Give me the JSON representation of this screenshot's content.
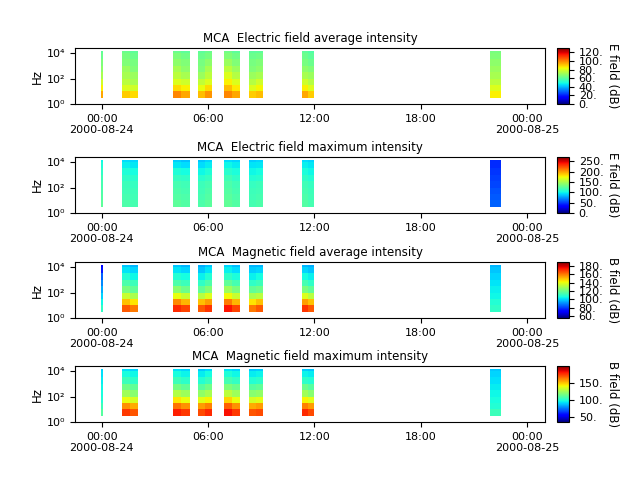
{
  "chart_data": [
    {
      "type": "heatmap",
      "title": "MCA  Electric field average intensity",
      "y_label": "Hz",
      "colorbar_label": "E field (dB)",
      "log": "y",
      "xlim": [
        -1.5,
        25
      ],
      "xticks": [
        {
          "value": 0,
          "label": "00:00\n2000-08-24"
        },
        {
          "value": 6,
          "label": "06:00"
        },
        {
          "value": 12,
          "label": "12:00"
        },
        {
          "value": 18,
          "label": "18:00"
        },
        {
          "value": 24,
          "label": "00:00\n2000-08-25"
        }
      ],
      "ylim": [
        1,
        25000
      ],
      "yticks": [
        {
          "value": 1,
          "label": "10⁰"
        },
        {
          "value": 100,
          "label": "10²"
        },
        {
          "value": 10000,
          "label": "10⁴"
        }
      ],
      "x_edges": [
        -0.05,
        0.1,
        1.15,
        1.6,
        2.05,
        4.0,
        4.5,
        5.0,
        5.45,
        5.85,
        6.25,
        6.9,
        7.35,
        7.8,
        8.3,
        8.7,
        9.1,
        11.3,
        11.65,
        12.0,
        21.9,
        22.5
      ],
      "y_edges": [
        3.2,
        10,
        32,
        100,
        316,
        1000,
        3162,
        10000,
        14000
      ],
      "cells": [
        [
          95,
          null,
          90,
          88,
          null,
          100,
          95,
          null,
          92,
          98,
          null,
          100,
          95,
          null,
          90,
          92,
          null,
          95,
          90,
          null,
          85
        ],
        [
          85,
          null,
          80,
          78,
          null,
          88,
          85,
          null,
          82,
          88,
          null,
          92,
          86,
          null,
          80,
          84,
          null,
          85,
          80,
          null,
          80
        ],
        [
          78,
          null,
          75,
          72,
          null,
          80,
          78,
          null,
          76,
          80,
          null,
          85,
          80,
          null,
          74,
          78,
          null,
          78,
          74,
          null,
          75
        ],
        [
          72,
          null,
          72,
          70,
          null,
          75,
          72,
          null,
          70,
          75,
          null,
          80,
          74,
          null,
          70,
          72,
          null,
          72,
          70,
          null,
          72
        ],
        [
          68,
          null,
          70,
          66,
          null,
          72,
          68,
          null,
          66,
          72,
          null,
          75,
          70,
          null,
          66,
          68,
          null,
          68,
          66,
          null,
          70
        ],
        [
          65,
          null,
          66,
          64,
          null,
          68,
          66,
          null,
          64,
          68,
          null,
          70,
          66,
          null,
          64,
          66,
          null,
          64,
          62,
          null,
          68
        ],
        [
          62,
          null,
          64,
          62,
          null,
          65,
          63,
          null,
          62,
          64,
          null,
          66,
          63,
          null,
          62,
          63,
          null,
          62,
          60,
          null,
          66
        ],
        [
          60,
          null,
          62,
          60,
          null,
          62,
          60,
          null,
          60,
          62,
          null,
          63,
          60,
          null,
          60,
          60,
          null,
          60,
          58,
          null,
          64
        ]
      ],
      "colorbar_range": [
        0,
        130
      ],
      "colorbar_ticks": [
        {
          "value": 0,
          "label": "0."
        },
        {
          "value": 20,
          "label": "20."
        },
        {
          "value": 40,
          "label": "40."
        },
        {
          "value": 60,
          "label": "60."
        },
        {
          "value": 80,
          "label": "80."
        },
        {
          "value": 100,
          "label": "100."
        },
        {
          "value": 120,
          "label": "120."
        }
      ]
    },
    {
      "type": "heatmap",
      "title": "MCA  Electric field maximum intensity",
      "y_label": "Hz",
      "colorbar_label": "E field (dB)",
      "log": "y",
      "xlim": [
        -1.5,
        25
      ],
      "xticks": [
        {
          "value": 0,
          "label": "00:00\n2000-08-24"
        },
        {
          "value": 6,
          "label": "06:00"
        },
        {
          "value": 12,
          "label": "12:00"
        },
        {
          "value": 18,
          "label": "18:00"
        },
        {
          "value": 24,
          "label": "00:00\n2000-08-25"
        }
      ],
      "ylim": [
        1,
        25000
      ],
      "yticks": [
        {
          "value": 1,
          "label": "10⁰"
        },
        {
          "value": 100,
          "label": "10²"
        },
        {
          "value": 10000,
          "label": "10⁴"
        }
      ],
      "x_edges": [
        -0.05,
        0.1,
        1.15,
        1.6,
        2.05,
        4.0,
        4.5,
        5.0,
        5.45,
        5.85,
        6.25,
        6.9,
        7.35,
        7.8,
        8.3,
        8.7,
        9.1,
        11.3,
        11.65,
        12.0,
        21.9,
        22.5
      ],
      "y_edges": [
        3.2,
        10,
        32,
        100,
        316,
        1000,
        3162,
        10000,
        14000
      ],
      "cells": [
        [
          125,
          null,
          120,
          118,
          null,
          125,
          122,
          null,
          120,
          124,
          null,
          126,
          122,
          null,
          118,
          120,
          null,
          122,
          118,
          null,
          60
        ],
        [
          122,
          null,
          118,
          116,
          null,
          122,
          120,
          null,
          118,
          122,
          null,
          124,
          120,
          null,
          116,
          118,
          null,
          120,
          116,
          null,
          58
        ],
        [
          120,
          null,
          116,
          114,
          null,
          120,
          118,
          null,
          116,
          120,
          null,
          122,
          118,
          null,
          114,
          116,
          null,
          118,
          114,
          null,
          55
        ],
        [
          118,
          null,
          114,
          112,
          null,
          118,
          116,
          null,
          114,
          118,
          null,
          120,
          116,
          null,
          112,
          114,
          null,
          116,
          112,
          null,
          52
        ],
        [
          115,
          null,
          110,
          108,
          null,
          112,
          110,
          null,
          108,
          112,
          null,
          115,
          110,
          null,
          106,
          108,
          null,
          110,
          106,
          null,
          50
        ],
        [
          110,
          null,
          105,
          102,
          null,
          105,
          102,
          null,
          100,
          105,
          null,
          108,
          104,
          null,
          100,
          102,
          null,
          104,
          100,
          null,
          48
        ],
        [
          105,
          null,
          98,
          95,
          null,
          95,
          92,
          null,
          92,
          96,
          null,
          100,
          96,
          null,
          94,
          95,
          null,
          98,
          95,
          null,
          45
        ],
        [
          100,
          null,
          92,
          90,
          null,
          88,
          85,
          null,
          86,
          90,
          null,
          92,
          90,
          null,
          88,
          90,
          null,
          92,
          90,
          null,
          45
        ]
      ],
      "colorbar_range": [
        0,
        270
      ],
      "colorbar_ticks": [
        {
          "value": 0,
          "label": "0."
        },
        {
          "value": 50,
          "label": "50."
        },
        {
          "value": 100,
          "label": "100."
        },
        {
          "value": 150,
          "label": "150."
        },
        {
          "value": 200,
          "label": "200."
        },
        {
          "value": 250,
          "label": "250."
        }
      ]
    },
    {
      "type": "heatmap",
      "title": "MCA  Magnetic field average intensity",
      "y_label": "Hz",
      "colorbar_label": "B field (dB)",
      "log": "y",
      "xlim": [
        -1.5,
        25
      ],
      "xticks": [
        {
          "value": 0,
          "label": "00:00\n2000-08-24"
        },
        {
          "value": 6,
          "label": "06:00"
        },
        {
          "value": 12,
          "label": "12:00"
        },
        {
          "value": 18,
          "label": "18:00"
        },
        {
          "value": 24,
          "label": "00:00\n2000-08-25"
        }
      ],
      "ylim": [
        1,
        25000
      ],
      "yticks": [
        {
          "value": 1,
          "label": "10⁰"
        },
        {
          "value": 100,
          "label": "10²"
        },
        {
          "value": 10000,
          "label": "10⁴"
        }
      ],
      "x_edges": [
        -0.05,
        0.1,
        1.15,
        1.6,
        2.05,
        4.0,
        4.5,
        5.0,
        5.45,
        5.85,
        6.25,
        6.9,
        7.35,
        7.8,
        8.3,
        8.7,
        9.1,
        11.3,
        11.65,
        12.0,
        21.9,
        22.5
      ],
      "y_edges": [
        3.2,
        10,
        32,
        100,
        316,
        1000,
        3162,
        10000,
        14000
      ],
      "cells": [
        [
          110,
          null,
          165,
          160,
          null,
          172,
          168,
          null,
          165,
          170,
          null,
          175,
          168,
          null,
          160,
          165,
          null,
          170,
          165,
          null,
          110
        ],
        [
          105,
          null,
          150,
          145,
          null,
          158,
          152,
          null,
          150,
          155,
          null,
          160,
          152,
          null,
          145,
          150,
          null,
          155,
          150,
          null,
          108
        ],
        [
          100,
          null,
          135,
          130,
          null,
          140,
          135,
          null,
          132,
          138,
          null,
          142,
          135,
          null,
          130,
          132,
          null,
          138,
          132,
          null,
          105
        ],
        [
          95,
          null,
          122,
          118,
          null,
          125,
          120,
          null,
          118,
          124,
          null,
          128,
          122,
          null,
          118,
          120,
          null,
          122,
          118,
          null,
          104
        ],
        [
          90,
          null,
          115,
          112,
          null,
          115,
          112,
          null,
          110,
          115,
          null,
          118,
          114,
          null,
          110,
          112,
          null,
          114,
          110,
          null,
          102
        ],
        [
          85,
          null,
          108,
          105,
          null,
          108,
          106,
          null,
          104,
          108,
          null,
          110,
          107,
          null,
          104,
          106,
          null,
          106,
          104,
          null,
          100
        ],
        [
          75,
          null,
          102,
          100,
          null,
          102,
          100,
          null,
          98,
          102,
          null,
          104,
          101,
          null,
          99,
          100,
          null,
          100,
          98,
          null,
          98
        ],
        [
          70,
          null,
          98,
          96,
          null,
          98,
          96,
          null,
          95,
          98,
          null,
          100,
          97,
          null,
          96,
          96,
          null,
          96,
          95,
          null,
          96
        ]
      ],
      "colorbar_range": [
        55,
        190
      ],
      "colorbar_ticks": [
        {
          "value": 60,
          "label": "60."
        },
        {
          "value": 80,
          "label": "80."
        },
        {
          "value": 100,
          "label": "100."
        },
        {
          "value": 120,
          "label": "120."
        },
        {
          "value": 140,
          "label": "140."
        },
        {
          "value": 160,
          "label": "160."
        },
        {
          "value": 180,
          "label": "180."
        }
      ]
    },
    {
      "type": "heatmap",
      "title": "MCA  Magnetic field maximum intensity",
      "y_label": "Hz",
      "colorbar_label": "B field (dB)",
      "log": "y",
      "xlim": [
        -1.5,
        25
      ],
      "xticks": [
        {
          "value": 0,
          "label": "00:00\n2000-08-24"
        },
        {
          "value": 6,
          "label": "06:00"
        },
        {
          "value": 12,
          "label": "12:00"
        },
        {
          "value": 18,
          "label": "18:00"
        },
        {
          "value": 24,
          "label": "00:00\n2000-08-25"
        }
      ],
      "ylim": [
        1,
        25000
      ],
      "yticks": [
        {
          "value": 1,
          "label": "10⁰"
        },
        {
          "value": 100,
          "label": "10²"
        },
        {
          "value": 10000,
          "label": "10⁴"
        }
      ],
      "x_edges": [
        -0.05,
        0.1,
        1.15,
        1.6,
        2.05,
        4.0,
        4.5,
        5.0,
        5.45,
        5.85,
        6.25,
        6.9,
        7.35,
        7.8,
        8.3,
        8.7,
        9.1,
        11.3,
        11.65,
        12.0,
        21.9,
        22.5
      ],
      "y_edges": [
        3.2,
        10,
        32,
        100,
        316,
        1000,
        3162,
        10000,
        14000
      ],
      "cells": [
        [
          110,
          null,
          175,
          170,
          null,
          180,
          175,
          null,
          172,
          178,
          null,
          182,
          175,
          null,
          170,
          172,
          null,
          178,
          172,
          null,
          105
        ],
        [
          105,
          null,
          160,
          155,
          null,
          165,
          160,
          null,
          158,
          162,
          null,
          168,
          160,
          null,
          155,
          158,
          null,
          162,
          158,
          null,
          100
        ],
        [
          100,
          null,
          140,
          135,
          null,
          145,
          140,
          null,
          138,
          142,
          null,
          148,
          140,
          null,
          135,
          138,
          null,
          142,
          138,
          null,
          98
        ],
        [
          98,
          null,
          125,
          120,
          null,
          128,
          124,
          null,
          122,
          126,
          null,
          130,
          124,
          null,
          120,
          122,
          null,
          125,
          120,
          null,
          96
        ],
        [
          96,
          null,
          115,
          112,
          null,
          116,
          112,
          null,
          110,
          115,
          null,
          118,
          114,
          null,
          110,
          112,
          null,
          114,
          110,
          null,
          94
        ],
        [
          94,
          null,
          105,
          102,
          null,
          105,
          102,
          null,
          100,
          104,
          null,
          106,
          103,
          null,
          100,
          102,
          null,
          102,
          100,
          null,
          92
        ],
        [
          92,
          null,
          98,
          96,
          null,
          98,
          95,
          null,
          94,
          97,
          null,
          99,
          96,
          null,
          94,
          95,
          null,
          95,
          94,
          null,
          90
        ],
        [
          90,
          null,
          92,
          90,
          null,
          92,
          90,
          null,
          88,
          91,
          null,
          93,
          90,
          null,
          88,
          89,
          null,
          89,
          88,
          null,
          88
        ]
      ],
      "colorbar_range": [
        35,
        200
      ],
      "colorbar_ticks": [
        {
          "value": 50,
          "label": "50."
        },
        {
          "value": 100,
          "label": "100."
        },
        {
          "value": 150,
          "label": "150."
        }
      ]
    }
  ]
}
